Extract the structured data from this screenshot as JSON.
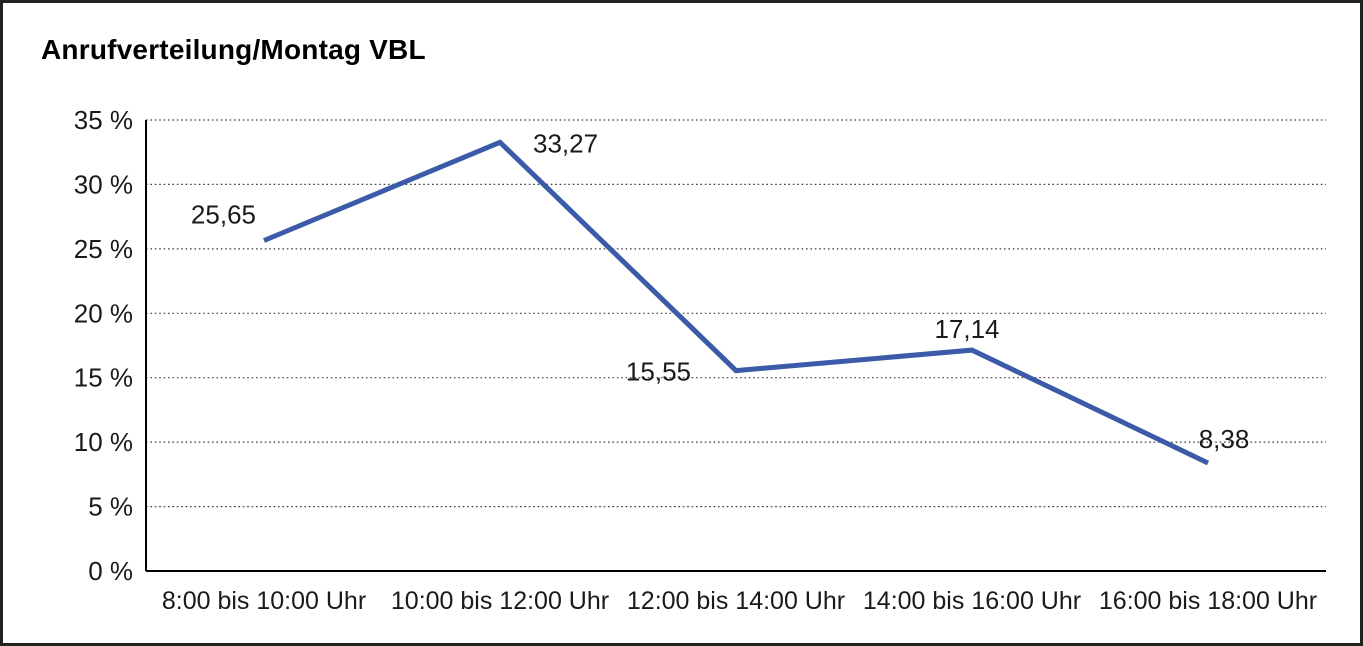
{
  "window": {
    "title": "Anrufverteilung/Montag VBL"
  },
  "chart_data": {
    "type": "line",
    "title": "Anrufverteilung/Montag VBL",
    "categories": [
      "8:00 bis 10:00 Uhr",
      "10:00 bis 12:00 Uhr",
      "12:00 bis 14:00 Uhr",
      "14:00 bis 16:00 Uhr",
      "16:00 bis 18:00 Uhr"
    ],
    "values": [
      25.65,
      33.27,
      15.55,
      17.14,
      8.38
    ],
    "value_labels": [
      "25,65",
      "33,27",
      "15,55",
      "17,14",
      "8,38"
    ],
    "xlabel": "",
    "ylabel": "",
    "ylim": [
      0,
      35
    ],
    "y_tick_step": 5,
    "y_tick_labels": [
      "0 %",
      "5 %",
      "10 %",
      "15 %",
      "20 %",
      "25 %",
      "30 %",
      "35 %"
    ],
    "grid": "horizontal-dotted",
    "legend": "none",
    "series_name": "Anrufverteilung Montag VBL",
    "colors": {
      "line": "#3B5BA8",
      "text": "#1a1a1a",
      "axis": "#000000",
      "gridline": "#3f3f3f",
      "background": "#ffffff",
      "frame_border": "#222222"
    }
  }
}
